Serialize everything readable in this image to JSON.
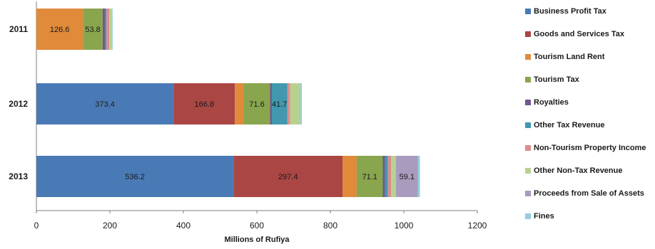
{
  "chart_data": {
    "type": "bar",
    "orientation": "horizontal",
    "stacked": true,
    "categories": [
      "2011",
      "2012",
      "2013"
    ],
    "xlabel": "Millions of Rufiya",
    "xlim": [
      0,
      1200
    ],
    "xticks": [
      "0",
      "200",
      "400",
      "600",
      "800",
      "1000",
      "1200"
    ],
    "grid": false,
    "legend_position": "right",
    "series": [
      {
        "name": "Business Profit Tax",
        "color": "#4a7ab5",
        "values": [
          0,
          373.4,
          536.2
        ],
        "labels": [
          "",
          "373.4",
          "536.2"
        ]
      },
      {
        "name": "Goods and Services Tax",
        "color": "#aa4643",
        "values": [
          0,
          166.8,
          297.4
        ],
        "labels": [
          "",
          "166.8",
          "297.4"
        ]
      },
      {
        "name": "Tourism Land Rent",
        "color": "#e08a3a",
        "values": [
          126.6,
          24,
          38
        ],
        "labels": [
          "126.6",
          "",
          ""
        ]
      },
      {
        "name": "Tourism Tax",
        "color": "#89a54e",
        "values": [
          53.8,
          71.6,
          71.1
        ],
        "labels": [
          "53.8",
          "71.6",
          "71.1"
        ]
      },
      {
        "name": "Royalties",
        "color": "#71588f",
        "values": [
          6,
          5,
          6
        ],
        "labels": [
          "",
          "",
          ""
        ]
      },
      {
        "name": "Other Tax Revenue",
        "color": "#4198af",
        "values": [
          4,
          41.7,
          8
        ],
        "labels": [
          "",
          "41.7",
          ""
        ]
      },
      {
        "name": "Non-Tourism Property Income",
        "color": "#db8e8d",
        "values": [
          8,
          8,
          9
        ],
        "labels": [
          "",
          "",
          ""
        ]
      },
      {
        "name": "Other Non-Tax Revenue",
        "color": "#b9d18f",
        "values": [
          7,
          28,
          13
        ],
        "labels": [
          "",
          "",
          ""
        ]
      },
      {
        "name": "Proceeds from Sale of Assets",
        "color": "#a99bbd",
        "values": [
          0,
          0,
          59.1
        ],
        "labels": [
          "",
          "",
          "59.1"
        ]
      },
      {
        "name": "Fines",
        "color": "#93cddd",
        "values": [
          2,
          4,
          6
        ],
        "labels": [
          "",
          "",
          ""
        ]
      }
    ]
  }
}
